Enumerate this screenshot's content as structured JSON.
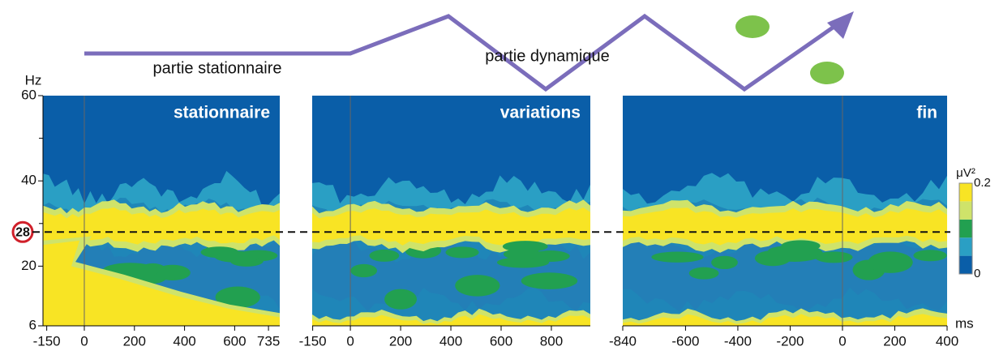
{
  "annotations": {
    "top_left": "partie stationnaire",
    "top_middle": "partie dynamique"
  },
  "chart_data": [
    {
      "type": "heatmap",
      "title": "stationnaire",
      "xlim": [
        -165,
        780
      ],
      "xticks": [
        -150,
        0,
        200,
        400,
        600,
        735
      ],
      "ylim": [
        6,
        60
      ],
      "yticks": [
        6,
        20,
        40,
        60
      ],
      "yminorticks": [
        30,
        50
      ],
      "ylabel": "Hz",
      "reference_line": 28,
      "event_line": 0
    },
    {
      "type": "heatmap",
      "title": "variations",
      "xlim": [
        -152,
        955
      ],
      "xticks": [
        -150,
        0,
        200,
        400,
        600,
        800
      ],
      "ylim": [
        6,
        60
      ],
      "event_line": 0
    },
    {
      "type": "heatmap",
      "title": "fin",
      "xlim": [
        -840,
        400
      ],
      "xticks": [
        -840,
        -600,
        -400,
        -200,
        0,
        200,
        400
      ],
      "ylim": [
        6,
        60
      ],
      "xlabel": "ms",
      "event_line": 0,
      "colorbar": {
        "title": "μV²",
        "lim": [
          0,
          0.2
        ],
        "ticks": [
          0,
          0.2
        ],
        "colors": [
          "#0a5ea8",
          "#2a9fc4",
          "#22a050",
          "#cfe36a",
          "#f8e424"
        ]
      }
    }
  ]
}
